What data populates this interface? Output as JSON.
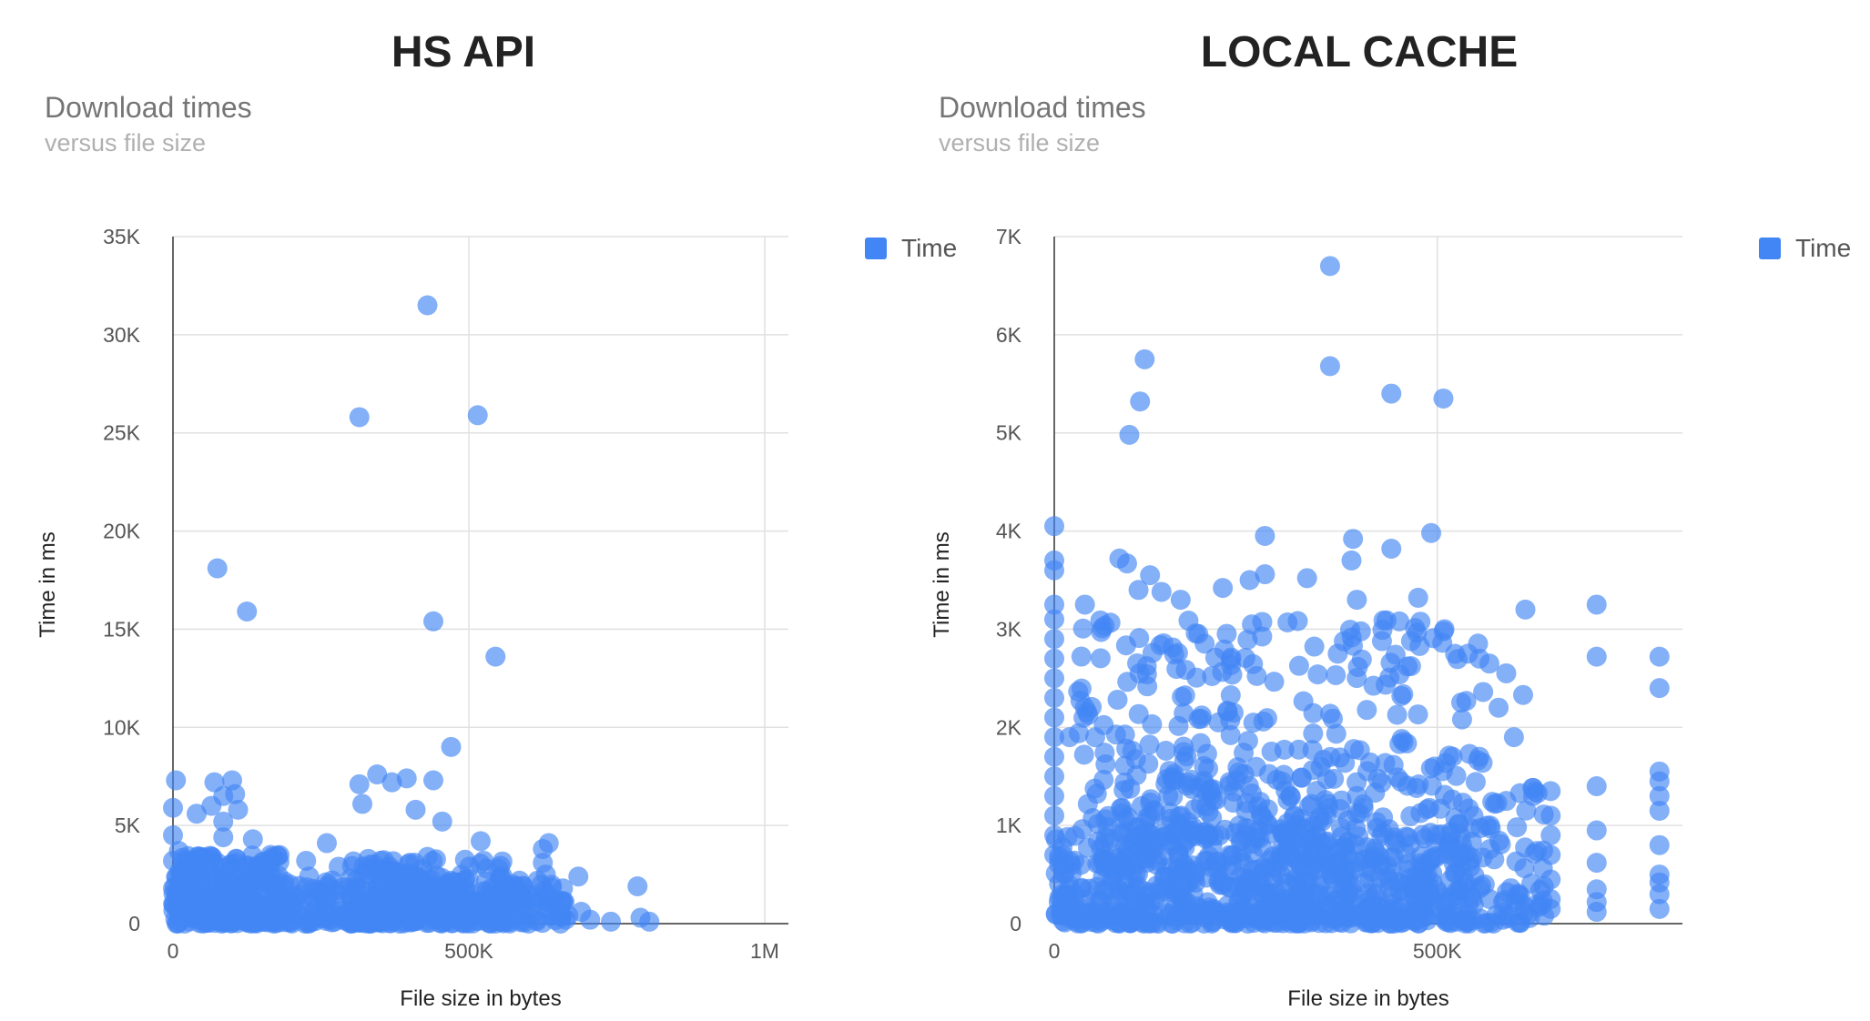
{
  "panels": [
    {
      "heading": "HS API",
      "chart_data": {
        "type": "scatter",
        "title": "Download times",
        "subtitle": "versus file size",
        "xlabel": "File size in bytes",
        "ylabel": "Time in ms",
        "legend": {
          "label": "Time",
          "position": "right"
        },
        "color": "#4285f4",
        "xlim": [
          0,
          1040000
        ],
        "ylim": [
          0,
          35000
        ],
        "xticks": [
          {
            "v": 0,
            "label": "0"
          },
          {
            "v": 500000,
            "label": "500K"
          },
          {
            "v": 1000000,
            "label": "1M"
          }
        ],
        "yticks": [
          {
            "v": 0,
            "label": "0"
          },
          {
            "v": 5000,
            "label": "5K"
          },
          {
            "v": 10000,
            "label": "10K"
          },
          {
            "v": 15000,
            "label": "15K"
          },
          {
            "v": 20000,
            "label": "20K"
          },
          {
            "v": 25000,
            "label": "25K"
          },
          {
            "v": 30000,
            "label": "30K"
          },
          {
            "v": 35000,
            "label": "35K"
          }
        ],
        "grid": true,
        "points": [
          {
            "x": 430000,
            "y": 31500
          },
          {
            "x": 315000,
            "y": 25800
          },
          {
            "x": 515000,
            "y": 25900
          },
          {
            "x": 75000,
            "y": 18100
          },
          {
            "x": 125000,
            "y": 15900
          },
          {
            "x": 440000,
            "y": 15400
          },
          {
            "x": 545000,
            "y": 13600
          },
          {
            "x": 470000,
            "y": 9000
          },
          {
            "x": 5000,
            "y": 7300
          },
          {
            "x": 70000,
            "y": 7200
          },
          {
            "x": 100000,
            "y": 7300
          },
          {
            "x": 85000,
            "y": 6500
          },
          {
            "x": 105000,
            "y": 6600
          },
          {
            "x": 345000,
            "y": 7600
          },
          {
            "x": 370000,
            "y": 7200
          },
          {
            "x": 395000,
            "y": 7400
          },
          {
            "x": 315000,
            "y": 7100
          },
          {
            "x": 440000,
            "y": 7300
          },
          {
            "x": 320000,
            "y": 6100
          },
          {
            "x": 410000,
            "y": 5800
          },
          {
            "x": 40000,
            "y": 5600
          },
          {
            "x": 0,
            "y": 5900
          },
          {
            "x": 65000,
            "y": 6000
          },
          {
            "x": 110000,
            "y": 5800
          },
          {
            "x": 455000,
            "y": 5200
          },
          {
            "x": 85000,
            "y": 5200
          },
          {
            "x": 0,
            "y": 4500
          },
          {
            "x": 85000,
            "y": 4400
          },
          {
            "x": 135000,
            "y": 4300
          },
          {
            "x": 520000,
            "y": 4200
          },
          {
            "x": 260000,
            "y": 4100
          },
          {
            "x": 635000,
            "y": 4100
          },
          {
            "x": 625000,
            "y": 3800
          },
          {
            "x": 10000,
            "y": 3700
          },
          {
            "x": 0,
            "y": 3200
          },
          {
            "x": 165000,
            "y": 3500
          },
          {
            "x": 225000,
            "y": 3200
          },
          {
            "x": 525000,
            "y": 3200
          },
          {
            "x": 625000,
            "y": 3100
          },
          {
            "x": 685000,
            "y": 2400
          },
          {
            "x": 785000,
            "y": 1900
          },
          {
            "x": 0,
            "y": 1800
          },
          {
            "x": 690000,
            "y": 600
          },
          {
            "x": 705000,
            "y": 200
          },
          {
            "x": 740000,
            "y": 100
          },
          {
            "x": 790000,
            "y": 300
          },
          {
            "x": 805000,
            "y": 100
          },
          {
            "x": 20000,
            "y": 2200
          },
          {
            "x": 40000,
            "y": 1500
          },
          {
            "x": 55000,
            "y": 2800
          },
          {
            "x": 70000,
            "y": 900
          },
          {
            "x": 95000,
            "y": 2300
          },
          {
            "x": 110000,
            "y": 1200
          },
          {
            "x": 130000,
            "y": 2700
          },
          {
            "x": 150000,
            "y": 600
          },
          {
            "x": 175000,
            "y": 1800
          },
          {
            "x": 200000,
            "y": 1000
          },
          {
            "x": 230000,
            "y": 2400
          },
          {
            "x": 255000,
            "y": 700
          },
          {
            "x": 280000,
            "y": 2900
          },
          {
            "x": 305000,
            "y": 1300
          },
          {
            "x": 330000,
            "y": 3300
          },
          {
            "x": 355000,
            "y": 900
          },
          {
            "x": 380000,
            "y": 2600
          },
          {
            "x": 405000,
            "y": 1700
          },
          {
            "x": 430000,
            "y": 3400
          },
          {
            "x": 455000,
            "y": 800
          },
          {
            "x": 480000,
            "y": 2100
          },
          {
            "x": 505000,
            "y": 1500
          },
          {
            "x": 530000,
            "y": 2800
          },
          {
            "x": 555000,
            "y": 600
          },
          {
            "x": 580000,
            "y": 1900
          },
          {
            "x": 605000,
            "y": 1200
          },
          {
            "x": 630000,
            "y": 2500
          },
          {
            "x": 655000,
            "y": 400
          },
          {
            "x": 190000,
            "y": 300
          },
          {
            "x": 270000,
            "y": 400
          },
          {
            "x": 345000,
            "y": 200
          }
        ],
        "dense_regions": [
          {
            "x": [
              0,
              180000
            ],
            "y": [
              0,
              3500
            ],
            "count": 300
          },
          {
            "x": [
              180000,
              300000
            ],
            "y": [
              0,
              2200
            ],
            "count": 80
          },
          {
            "x": [
              300000,
              560000
            ],
            "y": [
              0,
              3300
            ],
            "count": 320
          },
          {
            "x": [
              560000,
              670000
            ],
            "y": [
              0,
              2200
            ],
            "count": 60
          }
        ]
      }
    },
    {
      "heading": "LOCAL CACHE",
      "chart_data": {
        "type": "scatter",
        "title": "Download times",
        "subtitle": "versus file size",
        "xlabel": "File size in bytes",
        "ylabel": "Time in ms",
        "legend": {
          "label": "Time",
          "position": "right"
        },
        "color": "#4285f4",
        "xlim": [
          0,
          820000
        ],
        "ylim": [
          0,
          7000
        ],
        "xticks": [
          {
            "v": 0,
            "label": "0"
          },
          {
            "v": 500000,
            "label": "500K"
          }
        ],
        "yticks": [
          {
            "v": 0,
            "label": "0"
          },
          {
            "v": 1000,
            "label": "1K"
          },
          {
            "v": 2000,
            "label": "2K"
          },
          {
            "v": 3000,
            "label": "3K"
          },
          {
            "v": 4000,
            "label": "4K"
          },
          {
            "v": 5000,
            "label": "5K"
          },
          {
            "v": 6000,
            "label": "6K"
          },
          {
            "v": 7000,
            "label": "7K"
          }
        ],
        "grid": true,
        "points": [
          {
            "x": 360000,
            "y": 6700
          },
          {
            "x": 118000,
            "y": 5750
          },
          {
            "x": 360000,
            "y": 5680
          },
          {
            "x": 440000,
            "y": 5400
          },
          {
            "x": 508000,
            "y": 5350
          },
          {
            "x": 112000,
            "y": 5320
          },
          {
            "x": 98000,
            "y": 4980
          },
          {
            "x": 0,
            "y": 4050
          },
          {
            "x": 275000,
            "y": 3950
          },
          {
            "x": 390000,
            "y": 3920
          },
          {
            "x": 492000,
            "y": 3980
          },
          {
            "x": 440000,
            "y": 3820
          },
          {
            "x": 0,
            "y": 3700
          },
          {
            "x": 0,
            "y": 3600
          },
          {
            "x": 85000,
            "y": 3720
          },
          {
            "x": 95000,
            "y": 3670
          },
          {
            "x": 125000,
            "y": 3550
          },
          {
            "x": 255000,
            "y": 3500
          },
          {
            "x": 275000,
            "y": 3560
          },
          {
            "x": 330000,
            "y": 3520
          },
          {
            "x": 388000,
            "y": 3700
          },
          {
            "x": 220000,
            "y": 3420
          },
          {
            "x": 110000,
            "y": 3400
          },
          {
            "x": 140000,
            "y": 3380
          },
          {
            "x": 165000,
            "y": 3300
          },
          {
            "x": 40000,
            "y": 3250
          },
          {
            "x": 0,
            "y": 3250
          },
          {
            "x": 475000,
            "y": 3320
          },
          {
            "x": 395000,
            "y": 3300
          },
          {
            "x": 708000,
            "y": 3250
          },
          {
            "x": 615000,
            "y": 3200
          },
          {
            "x": 708000,
            "y": 2720
          },
          {
            "x": 790000,
            "y": 2720
          },
          {
            "x": 790000,
            "y": 2400
          },
          {
            "x": 590000,
            "y": 2550
          },
          {
            "x": 568000,
            "y": 2650
          },
          {
            "x": 612000,
            "y": 2330
          },
          {
            "x": 580000,
            "y": 2200
          },
          {
            "x": 600000,
            "y": 1900
          },
          {
            "x": 790000,
            "y": 1550
          },
          {
            "x": 790000,
            "y": 1450
          },
          {
            "x": 708000,
            "y": 1400
          },
          {
            "x": 790000,
            "y": 1300
          },
          {
            "x": 790000,
            "y": 1150
          },
          {
            "x": 708000,
            "y": 950
          },
          {
            "x": 790000,
            "y": 800
          },
          {
            "x": 708000,
            "y": 620
          },
          {
            "x": 790000,
            "y": 500
          },
          {
            "x": 790000,
            "y": 420
          },
          {
            "x": 708000,
            "y": 350
          },
          {
            "x": 790000,
            "y": 300
          },
          {
            "x": 708000,
            "y": 220
          },
          {
            "x": 790000,
            "y": 150
          },
          {
            "x": 708000,
            "y": 120
          },
          {
            "x": 648000,
            "y": 1350
          },
          {
            "x": 648000,
            "y": 1100
          },
          {
            "x": 648000,
            "y": 900
          },
          {
            "x": 648000,
            "y": 700
          },
          {
            "x": 648000,
            "y": 450
          },
          {
            "x": 648000,
            "y": 250
          },
          {
            "x": 648000,
            "y": 150
          },
          {
            "x": 555000,
            "y": 2700
          },
          {
            "x": 540000,
            "y": 2750
          },
          {
            "x": 520000,
            "y": 1700
          },
          {
            "x": 555000,
            "y": 1700
          },
          {
            "x": 590000,
            "y": 1250
          },
          {
            "x": 625000,
            "y": 1300
          },
          {
            "x": 40000,
            "y": 2200
          },
          {
            "x": 20000,
            "y": 1900
          },
          {
            "x": 0,
            "y": 3100
          },
          {
            "x": 0,
            "y": 2900
          },
          {
            "x": 0,
            "y": 2700
          },
          {
            "x": 0,
            "y": 2500
          },
          {
            "x": 0,
            "y": 2300
          },
          {
            "x": 0,
            "y": 2100
          },
          {
            "x": 0,
            "y": 1900
          },
          {
            "x": 0,
            "y": 1700
          },
          {
            "x": 0,
            "y": 1500
          },
          {
            "x": 0,
            "y": 1300
          },
          {
            "x": 0,
            "y": 1100
          },
          {
            "x": 0,
            "y": 900
          },
          {
            "x": 0,
            "y": 700
          }
        ],
        "dense_regions": [
          {
            "x": [
              30000,
              560000
            ],
            "y": [
              900,
              3100
            ],
            "count": 380
          },
          {
            "x": [
              0,
              560000
            ],
            "y": [
              0,
              900
            ],
            "count": 750
          },
          {
            "x": [
              560000,
              640000
            ],
            "y": [
              0,
              1400
            ],
            "count": 60
          }
        ]
      }
    }
  ]
}
